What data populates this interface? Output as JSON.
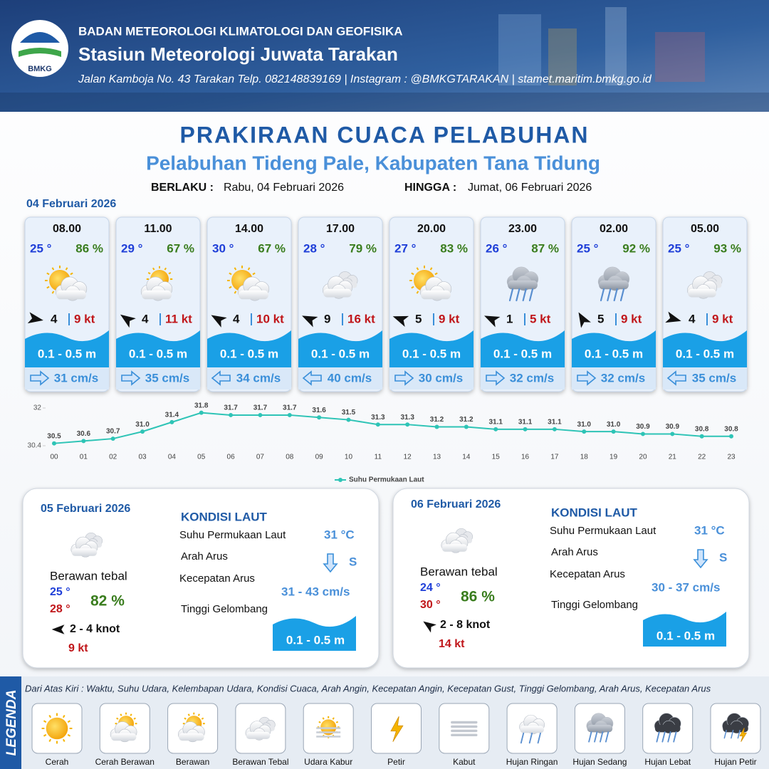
{
  "header": {
    "logo": "BMKG",
    "org": "BADAN METEOROLOGI KLIMATOLOGI DAN GEOFISIKA",
    "station": "Stasiun Meteorologi Juwata Tarakan",
    "address": "Jalan Kamboja No. 43 Tarakan  Telp. 082148839169 | Instagram : @BMKGTARAKAN | stamet.maritim.bmkg.go.id"
  },
  "title": "PRAKIRAAN CUACA PELABUHAN",
  "subtitle": "Pelabuhan Tideng Pale, Kabupaten Tana Tidung",
  "validity": {
    "from_label": "BERLAKU :",
    "from": "Rabu, 04 Februari 2026",
    "to_label": "HINGGA :",
    "to": "Jumat, 06 Februari 2026"
  },
  "day1_date": "04 Februari 2026",
  "forecasts": [
    {
      "time": "08.00",
      "temp": "25 °",
      "humidity": "86 %",
      "wind": "4",
      "gust": "9 kt",
      "wave": "0.1 - 0.5 m",
      "current": "31 cm/s"
    },
    {
      "time": "11.00",
      "temp": "29 °",
      "humidity": "67 %",
      "wind": "4",
      "gust": "11 kt",
      "wave": "0.1 - 0.5 m",
      "current": "35 cm/s"
    },
    {
      "time": "14.00",
      "temp": "30 °",
      "humidity": "67 %",
      "wind": "4",
      "gust": "10 kt",
      "wave": "0.1 - 0.5 m",
      "current": "34 cm/s"
    },
    {
      "time": "17.00",
      "temp": "28 °",
      "humidity": "79 %",
      "wind": "9",
      "gust": "16 kt",
      "wave": "0.1 - 0.5 m",
      "current": "40 cm/s"
    },
    {
      "time": "20.00",
      "temp": "27 °",
      "humidity": "83 %",
      "wind": "5",
      "gust": "9 kt",
      "wave": "0.1 - 0.5 m",
      "current": "30 cm/s"
    },
    {
      "time": "23.00",
      "temp": "26 °",
      "humidity": "87 %",
      "wind": "1",
      "gust": "5 kt",
      "wave": "0.1 - 0.5 m",
      "current": "32 cm/s"
    },
    {
      "time": "02.00",
      "temp": "25 °",
      "humidity": "92 %",
      "wind": "5",
      "gust": "9 kt",
      "wave": "0.1 - 0.5 m",
      "current": "32 cm/s"
    },
    {
      "time": "05.00",
      "temp": "25 °",
      "humidity": "93 %",
      "wind": "4",
      "gust": "9 kt",
      "wave": "0.1 - 0.5 m",
      "current": "35 cm/s"
    }
  ],
  "chart_data": {
    "type": "line",
    "categories": [
      "00",
      "01",
      "02",
      "03",
      "04",
      "05",
      "06",
      "07",
      "08",
      "09",
      "10",
      "11",
      "12",
      "13",
      "14",
      "15",
      "16",
      "17",
      "18",
      "19",
      "20",
      "21",
      "22",
      "23"
    ],
    "series": [
      {
        "name": "Suhu Permukaan Laut",
        "color": "#2ec4b6",
        "values": [
          30.5,
          30.6,
          30.7,
          31.0,
          31.4,
          31.8,
          31.7,
          31.7,
          31.7,
          31.6,
          31.5,
          31.3,
          31.3,
          31.2,
          31.2,
          31.1,
          31.1,
          31.1,
          31.0,
          31.0,
          30.9,
          30.9,
          30.8,
          30.8
        ],
        "value_labels": [
          "30.5",
          "30.6",
          "30.7",
          "31.0",
          "31.4",
          "31.8",
          "31.7",
          "31.7",
          "31.7",
          "31.6",
          "31.5",
          "31.3",
          "31.3",
          "31.2",
          "31.2",
          "31.1",
          "31.1",
          "31.1",
          "31.0",
          "31.0",
          "30.9",
          "30.9",
          "30.8",
          "30.8"
        ]
      }
    ],
    "ylim": [
      30.4,
      32
    ],
    "yticks": [
      30.4,
      32
    ],
    "grid": false,
    "legend": "bottom"
  },
  "days": [
    {
      "date": "05 Februari 2026",
      "condition": "Berawan tebal",
      "temp_min": "25 °",
      "temp_max": "28 °",
      "humidity": "82 %",
      "wind": "2  - 4 knot",
      "gust": "9 kt",
      "sea_title": "KONDISI LAUT",
      "sst_label": "Suhu Permukaan Laut",
      "sst": "31 °C",
      "dir_label": "Arah Arus",
      "dir": "S",
      "speed_label": "Kecepatan Arus",
      "speed": "31 - 43 cm/s",
      "wave_label": "Tinggi Gelombang",
      "wave": "0.1 - 0.5 m"
    },
    {
      "date": "06 Februari 2026",
      "condition": "Berawan tebal",
      "temp_min": "24 °",
      "temp_max": "30 °",
      "humidity": "86 %",
      "wind": "2  - 8 knot",
      "gust": "14 kt",
      "sea_title": "KONDISI LAUT",
      "sst_label": "Suhu Permukaan Laut",
      "sst": "31 °C",
      "dir_label": "Arah Arus",
      "dir": "S",
      "speed_label": "Kecepatan Arus",
      "speed": "30 - 37 cm/s",
      "wave_label": "Tinggi Gelombang",
      "wave": "0.1 - 0.5 m"
    }
  ],
  "legend": {
    "title": "LEGENDA",
    "description": "Dari Atas Kiri : Waktu, Suhu Udara, Kelembapan Udara, Kondisi Cuaca, Arah Angin, Kecepatan Angin, Kecepatan Gust, Tinggi Gelombang, Arah Arus, Kecepatan Arus",
    "items": [
      "Cerah",
      "Cerah Berawan",
      "Berawan",
      "Berawan Tebal",
      "Udara Kabur",
      "Petir",
      "Kabut",
      "Hujan Ringan",
      "Hujan Sedang",
      "Hujan Lebat",
      "Hujan Petir"
    ]
  }
}
